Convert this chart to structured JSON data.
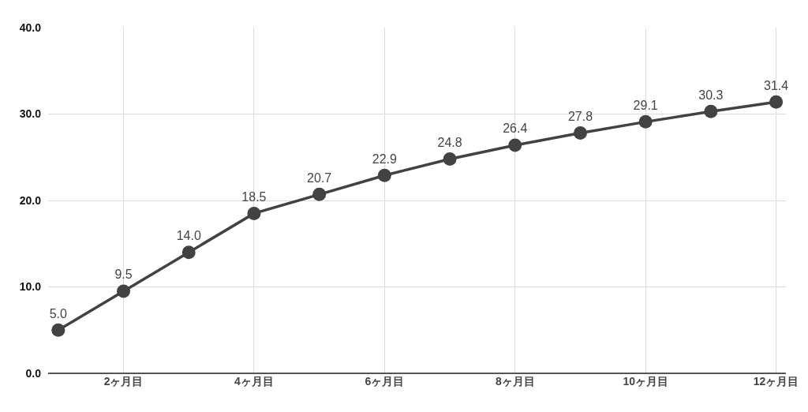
{
  "chart_data": {
    "type": "line",
    "categories": [
      null,
      "2ヶ月目",
      null,
      "4ヶ月目",
      null,
      "6ヶ月目",
      null,
      "8ヶ月目",
      null,
      "10ヶ月目",
      null,
      "12ヶ月目"
    ],
    "series": [
      {
        "color": "#424242",
        "values": [
          5.0,
          9.5,
          14.0,
          18.5,
          20.7,
          22.9,
          24.8,
          26.4,
          27.8,
          29.1,
          30.3,
          31.4
        ],
        "value_labels": [
          "5.0",
          "9.5",
          "14.0",
          "18.5",
          "20.7",
          "22.9",
          "24.8",
          "26.4",
          "27.8",
          "29.1",
          "30.3",
          "31.4"
        ]
      }
    ],
    "ylim": [
      0,
      40
    ],
    "yticks": [
      {
        "value": 0,
        "label": "0.0"
      },
      {
        "value": 10,
        "label": "10.0"
      },
      {
        "value": 20,
        "label": "20.0"
      },
      {
        "value": 30,
        "label": "30.0"
      },
      {
        "value": 40,
        "label": "40.0"
      }
    ],
    "grid": true,
    "marker": "circle",
    "line_style": "solid"
  }
}
